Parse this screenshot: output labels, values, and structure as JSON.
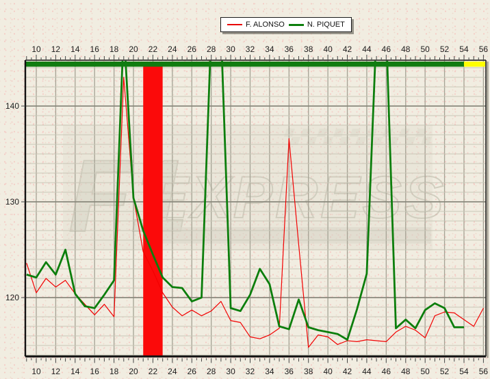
{
  "legend": {
    "items": [
      {
        "label": "F. ALONSO",
        "color": "#e80000"
      },
      {
        "label": "N. PIQUET",
        "color": "#0c7e0c"
      }
    ]
  },
  "watermark": {
    "line1": "F1",
    "line2": "EXPRESS"
  },
  "chart_data": {
    "type": "line",
    "title": "",
    "xlabel": "",
    "ylabel": "",
    "grid": "on",
    "legend_position": "top-center",
    "x_axis": {
      "ticks": [
        10,
        12,
        14,
        16,
        18,
        20,
        22,
        24,
        26,
        28,
        30,
        32,
        34,
        36,
        38,
        40,
        42,
        44,
        46,
        48,
        50,
        52,
        54,
        56
      ],
      "minor_step": 0.5,
      "range": [
        8.9,
        56.2
      ]
    },
    "y_axis": {
      "ticks": [
        120,
        130,
        140
      ],
      "minor_step": 1,
      "range": [
        113.9,
        144.8
      ]
    },
    "status_bar": {
      "segments": [
        {
          "from": 9,
          "to": 54,
          "color": "#107c10",
          "status": "green"
        },
        {
          "from": 54,
          "to": 56,
          "color": "#ffff00",
          "status": "yellow"
        }
      ]
    },
    "highlight_band": {
      "from": 21,
      "to": 23,
      "color": "#fb0a0a"
    },
    "clip_value": 144.8,
    "offscale_value": 148,
    "series": [
      {
        "name": "F. ALONSO",
        "color": "#f20000",
        "width": 1.2,
        "lap_start": 9,
        "values": [
          123.6,
          120.5,
          122.0,
          121.1,
          121.8,
          120.4,
          119.3,
          118.2,
          119.3,
          118.0,
          143.0,
          130.5,
          124.8,
          122.8,
          120.5,
          119.0,
          118.1,
          118.7,
          118.1,
          118.6,
          119.6,
          117.6,
          117.4,
          115.9,
          115.7,
          116.1,
          116.8,
          136.6,
          125.5,
          114.8,
          116.1,
          115.9,
          115.1,
          115.5,
          115.4,
          115.6,
          115.5,
          115.4,
          116.4,
          117.0,
          116.6,
          115.8,
          118.1,
          118.5,
          118.4,
          117.7,
          117.0,
          118.9
        ]
      },
      {
        "name": "N. PIQUET",
        "color": "#0c7e0c",
        "width": 2.8,
        "lap_start": 9,
        "values": [
          122.4,
          122.1,
          123.7,
          122.4,
          125.0,
          120.4,
          119.1,
          118.9,
          120.3,
          121.8,
          148,
          130.4,
          127.0,
          124.5,
          122.1,
          121.1,
          121.0,
          119.6,
          120.0,
          148,
          148,
          118.9,
          118.6,
          120.3,
          123.0,
          121.4,
          117.0,
          116.7,
          119.8,
          116.9,
          116.6,
          116.4,
          116.2,
          115.6,
          118.8,
          122.5,
          148,
          148,
          116.8,
          117.7,
          116.8,
          118.7,
          119.4,
          118.9,
          116.9,
          116.9
        ]
      }
    ]
  }
}
